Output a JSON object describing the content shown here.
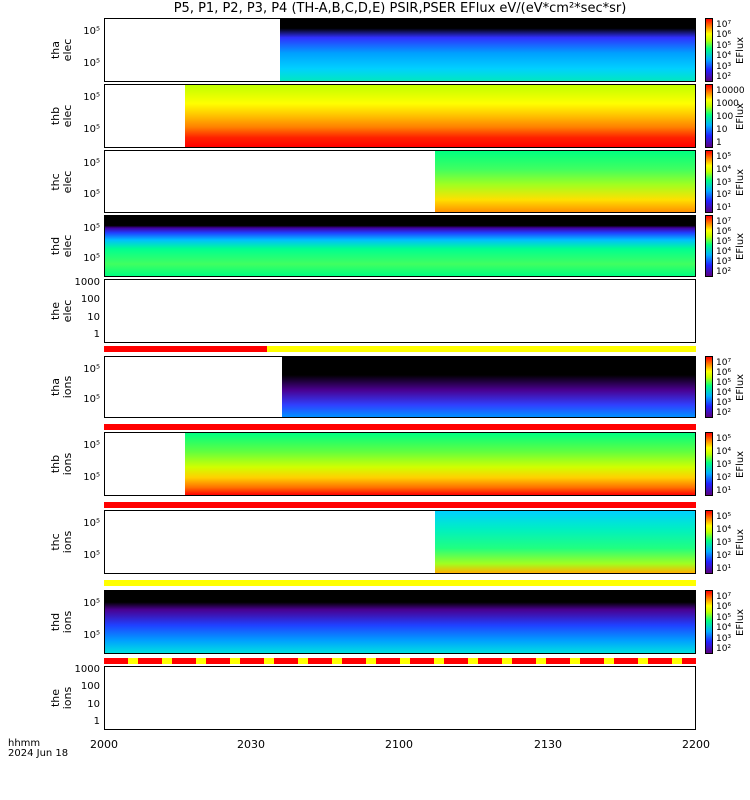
{
  "title": "P5, P1, P2, P3, P4 (TH-A,B,C,D,E) PSIR,PSER EFlux eV/(eV*cm²*sec*sr)",
  "colorbar_label": "EFlux",
  "x_axis": {
    "ticks": [
      "2000",
      "2030",
      "2100",
      "2130",
      "2200"
    ],
    "label_line1": "hhmm",
    "label_line2": "2024 Jun 18"
  },
  "panels": [
    {
      "probe": "tha",
      "species": "elec",
      "yticks": [
        "10⁵",
        "10⁵"
      ],
      "cb": [
        "10⁷",
        "10⁶",
        "10⁵",
        "10⁴",
        "10³",
        "10²"
      ],
      "data_start_frac": 0.297
    },
    {
      "probe": "thb",
      "species": "elec",
      "yticks": [
        "10⁵",
        "10⁵"
      ],
      "cb": [
        "10000",
        "1000",
        "100",
        "10",
        "1"
      ],
      "data_start_frac": 0.135
    },
    {
      "probe": "thc",
      "species": "elec",
      "yticks": [
        "10⁵",
        "10⁵"
      ],
      "cb": [
        "10⁵",
        "10⁴",
        "10³",
        "10²",
        "10¹"
      ],
      "data_start_frac": 0.56
    },
    {
      "probe": "thd",
      "species": "elec",
      "yticks": [
        "10⁵",
        "10⁵"
      ],
      "cb": [
        "10⁷",
        "10⁶",
        "10⁵",
        "10⁴",
        "10³",
        "10²"
      ],
      "data_start_frac": 0.0
    },
    {
      "probe": "the",
      "species": "elec",
      "yticks": [
        "1000",
        "100",
        "10",
        "1"
      ],
      "cb": [],
      "data_start_frac": null
    },
    {
      "probe": "tha",
      "species": "ions",
      "yticks": [
        "10⁵",
        "10⁵"
      ],
      "cb": [
        "10⁷",
        "10⁶",
        "10⁵",
        "10⁴",
        "10³",
        "10²"
      ],
      "data_start_frac": 0.3
    },
    {
      "probe": "thb",
      "species": "ions",
      "yticks": [
        "10⁵",
        "10⁵"
      ],
      "cb": [
        "10⁵",
        "10⁴",
        "10³",
        "10²",
        "10¹"
      ],
      "data_start_frac": 0.135
    },
    {
      "probe": "thc",
      "species": "ions",
      "yticks": [
        "10⁵",
        "10⁵"
      ],
      "cb": [
        "10⁵",
        "10⁴",
        "10³",
        "10²",
        "10¹"
      ],
      "data_start_frac": 0.56
    },
    {
      "probe": "thd",
      "species": "ions",
      "yticks": [
        "10⁵",
        "10⁵"
      ],
      "cb": [
        "10⁷",
        "10⁶",
        "10⁵",
        "10⁴",
        "10³",
        "10²"
      ],
      "data_start_frac": 0.0
    },
    {
      "probe": "the",
      "species": "ions",
      "yticks": [
        "1000",
        "100",
        "10",
        "1"
      ],
      "cb": [],
      "data_start_frac": null
    }
  ],
  "colors": {
    "red": "#ff0000",
    "yellow": "#ffff00",
    "black": "#000000"
  },
  "chart_data": {
    "type": "heatmap",
    "title": "P5, P1, P2, P3, P4 (TH-A,B,C,D,E) PSIR,PSER EFlux eV/(eV*cm²*sec*sr)",
    "x_range": [
      "2000",
      "2200"
    ],
    "z_label": "EFlux"
  }
}
